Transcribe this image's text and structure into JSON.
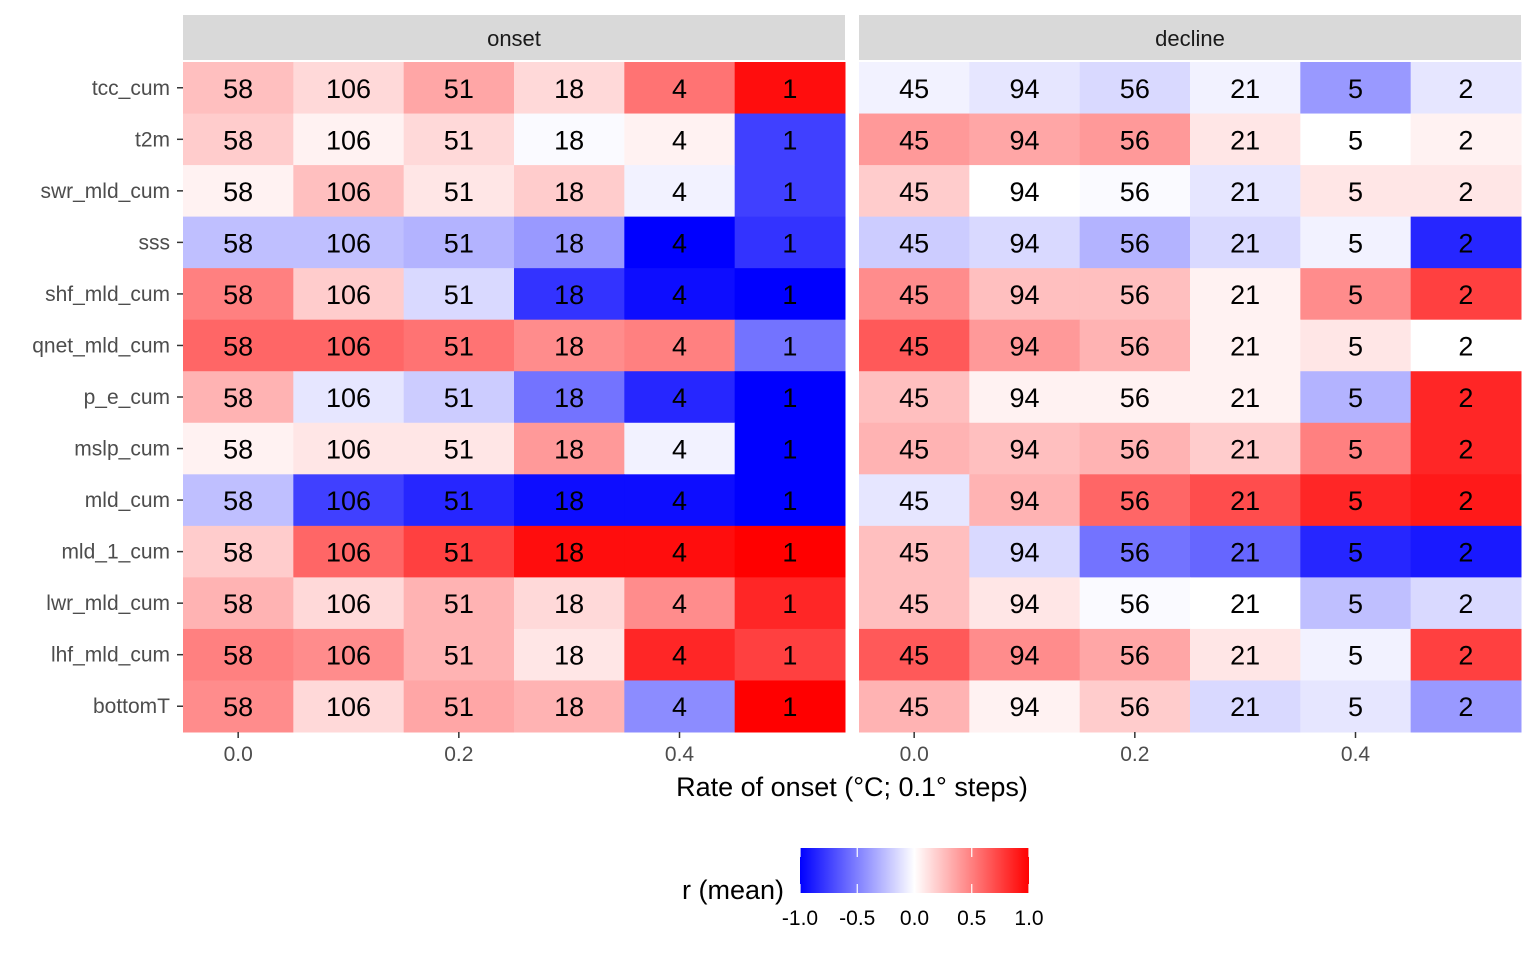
{
  "chart_data": {
    "type": "heatmap",
    "panels": [
      "onset",
      "decline"
    ],
    "variables": [
      "tcc_cum",
      "t2m",
      "swr_mld_cum",
      "sss",
      "shf_mld_cum",
      "qnet_mld_cum",
      "p_e_cum",
      "mslp_cum",
      "mld_cum",
      "mld_1_cum",
      "lwr_mld_cum",
      "lhf_mld_cum",
      "bottomT"
    ],
    "x": [
      0.0,
      0.1,
      0.2,
      0.3,
      0.4,
      0.5
    ],
    "x_ticks": [
      0.0,
      0.2,
      0.4
    ],
    "x_tick_labels": [
      "0.0",
      "0.2",
      "0.4"
    ],
    "xlabel": "Rate of onset (°C; 0.1° steps)",
    "counts": {
      "onset": [
        "58",
        "106",
        "51",
        "18",
        "4",
        "1"
      ],
      "decline": [
        "45",
        "94",
        "56",
        "21",
        "5",
        "2"
      ]
    },
    "values": {
      "onset": [
        [
          0.25,
          0.15,
          0.35,
          0.15,
          0.55,
          0.95
        ],
        [
          0.2,
          0.05,
          0.15,
          -0.02,
          0.05,
          -0.75
        ],
        [
          0.05,
          0.25,
          0.1,
          0.2,
          -0.05,
          -0.75
        ],
        [
          -0.25,
          -0.25,
          -0.3,
          -0.4,
          -1.0,
          -0.8
        ],
        [
          0.5,
          0.2,
          -0.15,
          -0.8,
          -0.95,
          -1.0
        ],
        [
          0.6,
          0.6,
          0.55,
          0.45,
          0.5,
          -0.55
        ],
        [
          0.3,
          -0.1,
          -0.2,
          -0.55,
          -0.85,
          -1.0
        ],
        [
          0.05,
          0.1,
          0.1,
          0.4,
          -0.05,
          -1.0
        ],
        [
          -0.25,
          -0.75,
          -0.85,
          -0.95,
          -0.95,
          -1.0
        ],
        [
          0.2,
          0.6,
          0.75,
          0.95,
          0.95,
          1.0
        ],
        [
          0.3,
          0.15,
          0.3,
          0.15,
          0.45,
          0.85
        ],
        [
          0.5,
          0.45,
          0.3,
          0.1,
          0.85,
          0.75
        ],
        [
          0.45,
          0.15,
          0.35,
          0.3,
          -0.45,
          1.0
        ]
      ],
      "decline": [
        [
          -0.05,
          -0.1,
          -0.15,
          -0.05,
          -0.4,
          -0.1
        ],
        [
          0.4,
          0.35,
          0.4,
          0.1,
          0.0,
          0.05
        ],
        [
          0.2,
          0.0,
          -0.02,
          -0.1,
          0.1,
          0.1
        ],
        [
          -0.2,
          -0.15,
          -0.3,
          -0.15,
          -0.05,
          -0.85
        ],
        [
          0.45,
          0.25,
          0.25,
          0.05,
          0.45,
          0.75
        ],
        [
          0.65,
          0.4,
          0.3,
          0.05,
          0.1,
          0.0
        ],
        [
          0.25,
          0.05,
          0.05,
          0.05,
          -0.3,
          0.85
        ],
        [
          0.3,
          0.25,
          0.3,
          0.2,
          0.5,
          0.85
        ],
        [
          -0.1,
          0.3,
          0.6,
          0.7,
          0.85,
          0.9
        ],
        [
          0.25,
          -0.15,
          -0.55,
          -0.6,
          -0.85,
          -0.9
        ],
        [
          0.25,
          0.1,
          -0.02,
          0.0,
          -0.25,
          -0.15
        ],
        [
          0.65,
          0.45,
          0.35,
          0.1,
          -0.05,
          0.75
        ],
        [
          0.3,
          0.05,
          0.2,
          -0.15,
          -0.1,
          -0.4
        ]
      ]
    },
    "legend": {
      "title": "r (mean)",
      "range": [
        -1.0,
        1.0
      ],
      "ticks": [
        "-1.0",
        "-0.5",
        "0.0",
        "0.5",
        "1.0"
      ],
      "colors": {
        "low": "#0000ff",
        "mid": "#ffffff",
        "high": "#ff0000"
      }
    },
    "strip_fill": "#d9d9d9"
  }
}
